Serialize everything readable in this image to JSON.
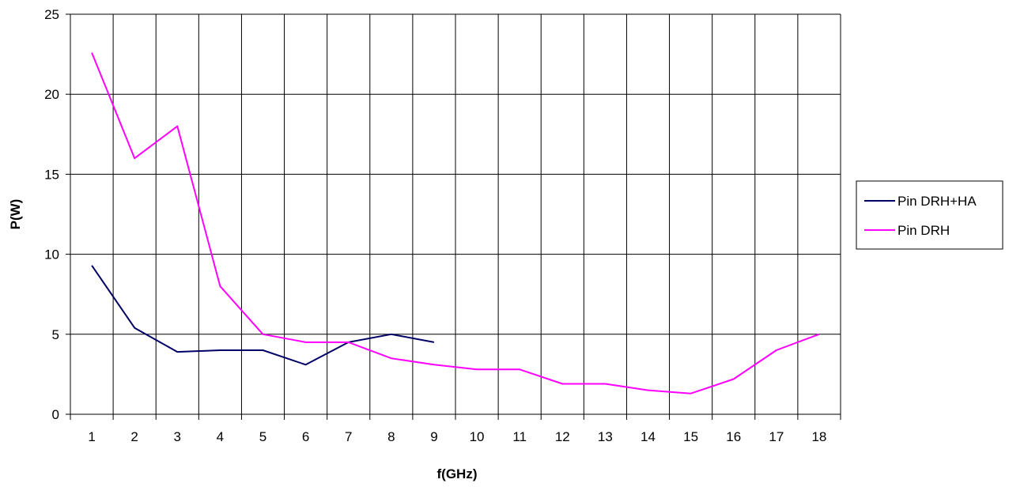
{
  "chart_data": {
    "type": "line",
    "xlabel": "f(GHz)",
    "ylabel": "P(W)",
    "categories": [
      "1",
      "2",
      "3",
      "4",
      "5",
      "6",
      "7",
      "8",
      "9",
      "10",
      "11",
      "12",
      "13",
      "14",
      "15",
      "16",
      "17",
      "18"
    ],
    "ylim": [
      0,
      25
    ],
    "yticks": [
      0,
      5,
      10,
      15,
      20,
      25
    ],
    "grid": true,
    "legend_position": "right",
    "series": [
      {
        "name": "Pin DRH+HA",
        "color": "#000066",
        "values": [
          9.3,
          5.4,
          3.9,
          4.0,
          4.0,
          3.1,
          4.5,
          5.0,
          4.5,
          null,
          null,
          null,
          null,
          null,
          null,
          null,
          null,
          null
        ]
      },
      {
        "name": "Pin DRH",
        "color": "#ff00ff",
        "values": [
          22.6,
          16.0,
          18.0,
          8.0,
          5.0,
          4.5,
          4.5,
          3.5,
          3.1,
          2.8,
          2.8,
          1.9,
          1.9,
          1.5,
          1.3,
          2.2,
          4.0,
          5.0
        ]
      }
    ]
  }
}
